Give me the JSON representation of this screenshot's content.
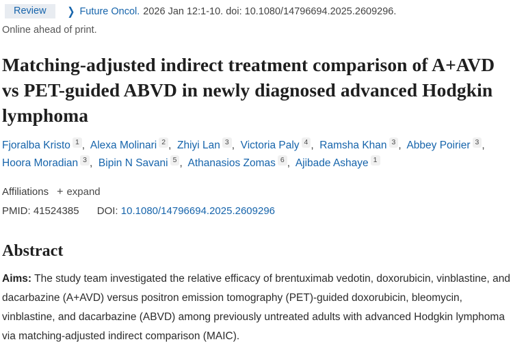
{
  "header": {
    "badge": "Review",
    "journal": "Future Oncol.",
    "citation": "2026 Jan 12:1-10. doi: 10.1080/14796694.2025.2609296.",
    "online_ahead": "Online ahead of print."
  },
  "title": "Matching-adjusted indirect treatment comparison of A+AVD vs PET-guided ABVD in newly diagnosed advanced Hodgkin lymphoma",
  "authors": [
    {
      "name": "Fjoralba Kristo",
      "sup": "1"
    },
    {
      "name": "Alexa Molinari",
      "sup": "2"
    },
    {
      "name": "Zhiyi Lan",
      "sup": "3"
    },
    {
      "name": "Victoria Paly",
      "sup": "4"
    },
    {
      "name": "Ramsha Khan",
      "sup": "3"
    },
    {
      "name": "Abbey Poirier",
      "sup": "3"
    },
    {
      "name": "Hoora Moradian",
      "sup": "3"
    },
    {
      "name": "Bipin N Savani",
      "sup": "5"
    },
    {
      "name": "Athanasios Zomas",
      "sup": "6"
    },
    {
      "name": "Ajibade Ashaye",
      "sup": "1"
    }
  ],
  "affiliations": {
    "label": "Affiliations",
    "plus": "+",
    "expand_label": "expand"
  },
  "identifiers": {
    "pmid_label": "PMID:",
    "pmid": "41524385",
    "doi_label": "DOI:",
    "doi": "10.1080/14796694.2025.2609296"
  },
  "abstract": {
    "heading": "Abstract",
    "aims_label": "Aims:",
    "aims_text": " The study team investigated the relative efficacy of brentuximab vedotin, doxorubicin, vinblastine, and dacarbazine (A+AVD) versus positron emission tomography (PET)-guided doxorubicin, bleomycin, vinblastine, and dacarbazine (ABVD) among previously untreated adults with advanced Hodgkin lymphoma via matching-adjusted indirect comparison (MAIC)."
  },
  "icons": {
    "chevron_right": "❯"
  },
  "colors": {
    "link_blue": "#1664ab",
    "badge_bg": "#e8ecf1",
    "text_dark": "#212121",
    "text_gray": "#555555",
    "citation_gray": "#424242",
    "sup_bg": "#f0f0f0"
  }
}
